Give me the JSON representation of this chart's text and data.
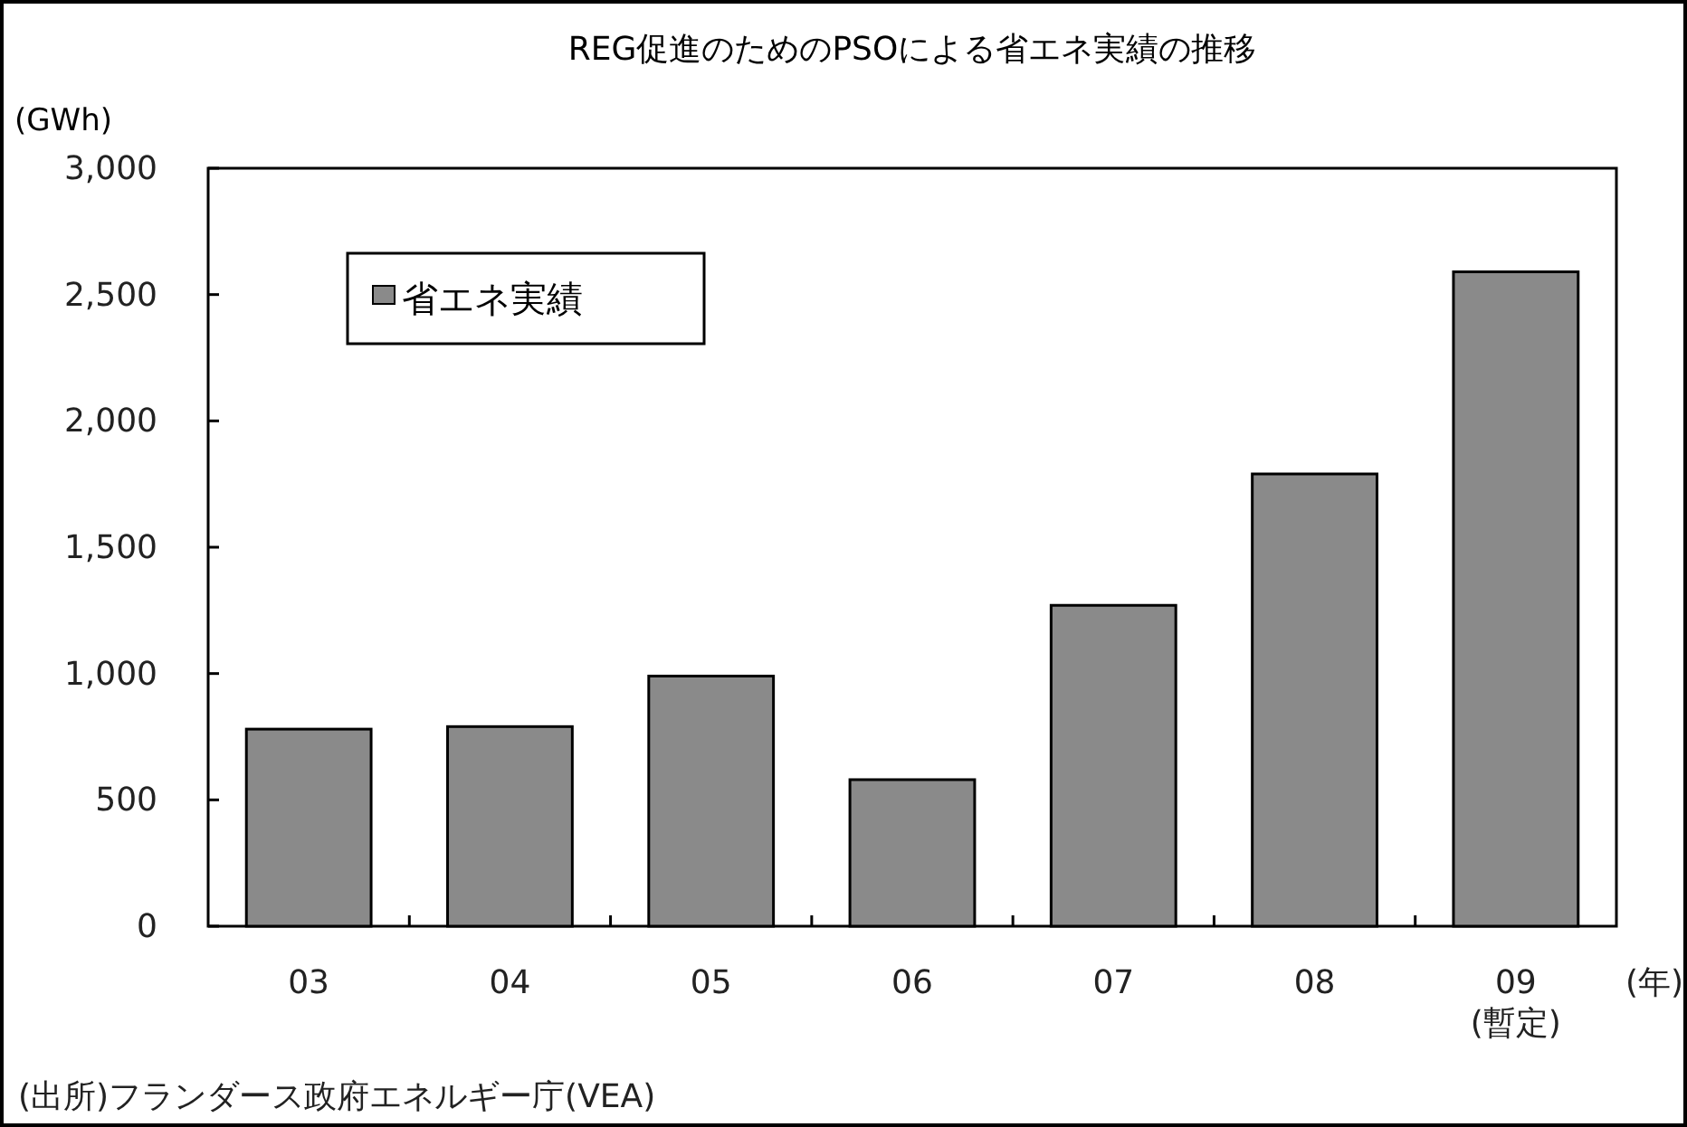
{
  "chart_data": {
    "type": "bar",
    "title": "REG促進のためのPSOによる省エネ実績の推移",
    "ylabel": "(GWh)",
    "xlabel": "(年)",
    "categories": [
      "03",
      "04",
      "05",
      "06",
      "07",
      "08",
      "09\n(暫定)"
    ],
    "series": [
      {
        "name": "省エネ実績",
        "color": "#8a8a8a",
        "values": [
          780,
          790,
          990,
          580,
          1270,
          1790,
          2590
        ]
      }
    ],
    "ylim": [
      0,
      3000
    ],
    "yticks": [
      {
        "value": 0,
        "label": "0"
      },
      {
        "value": 500,
        "label": "500"
      },
      {
        "value": 1000,
        "label": "1,000"
      },
      {
        "value": 1500,
        "label": "1,500"
      },
      {
        "value": 2000,
        "label": "2,000"
      },
      {
        "value": 2500,
        "label": "2,500"
      },
      {
        "value": 3000,
        "label": "3,000"
      }
    ],
    "legend": "top left",
    "grid": false,
    "annotations": [
      "(出所)フランダース政府エネルギー庁(VEA)"
    ]
  }
}
